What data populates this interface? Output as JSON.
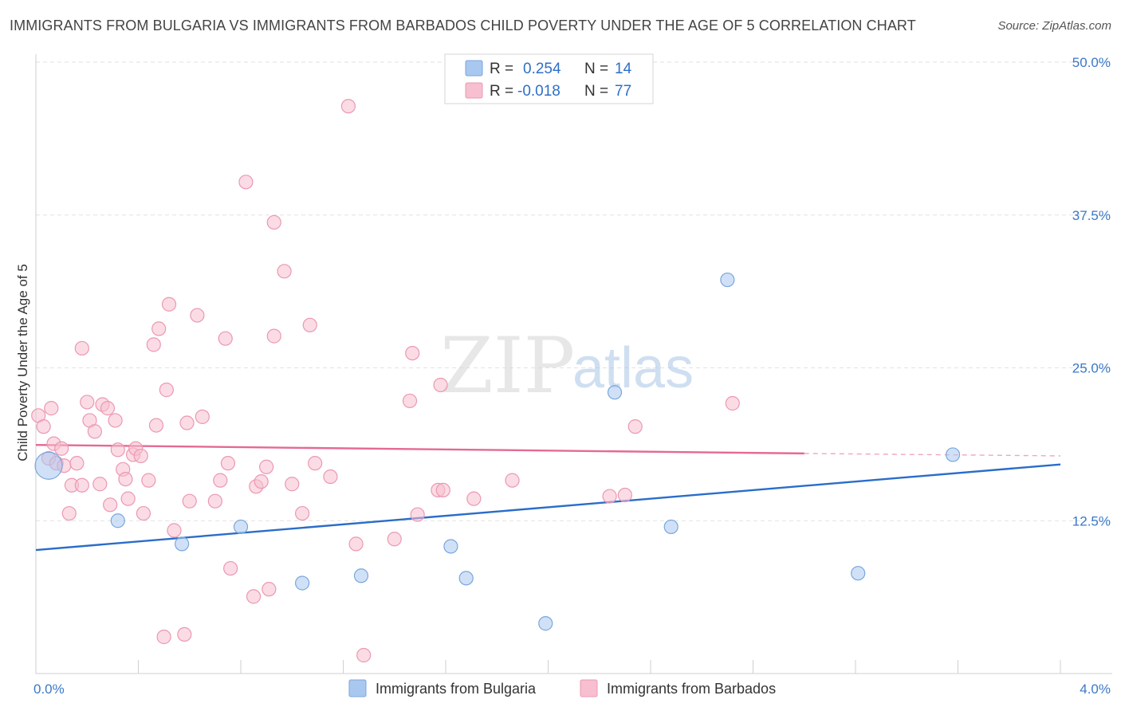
{
  "header": {
    "title": "IMMIGRANTS FROM BULGARIA VS IMMIGRANTS FROM BARBADOS CHILD POVERTY UNDER THE AGE OF 5 CORRELATION CHART",
    "source": "Source: ZipAtlas.com"
  },
  "watermark": {
    "zip": "ZIP",
    "atlas": "atlas"
  },
  "legend": {
    "rows": [
      {
        "r_label": "R =",
        "r_value": "0.254",
        "n_label": "N =",
        "n_value": "14"
      },
      {
        "r_label": "R =",
        "r_value": "-0.018",
        "n_label": "N =",
        "n_value": "77"
      }
    ]
  },
  "chart_data": {
    "type": "scatter",
    "title": "IMMIGRANTS FROM BULGARIA VS IMMIGRANTS FROM BARBADOS CHILD POVERTY UNDER THE AGE OF 5 CORRELATION CHART",
    "xlabel": "",
    "ylabel": "Child Poverty Under the Age of 5",
    "xlim": [
      0,
      4.0
    ],
    "ylim": [
      0,
      50
    ],
    "x_tick_labels": [
      "0.0%",
      "4.0%"
    ],
    "y_ticks": [
      12.5,
      25.0,
      37.5,
      50.0
    ],
    "y_tick_labels": [
      "12.5%",
      "25.0%",
      "37.5%",
      "50.0%"
    ],
    "grid": true,
    "legend_position": "top-center",
    "series": [
      {
        "name": "Immigrants from Bulgaria",
        "color": "#a9c8f0",
        "stroke": "#7aa6dc",
        "line_color": "#2a6dc9",
        "r": 0.254,
        "n": 14,
        "trend": {
          "x": [
            0,
            4.0
          ],
          "y": [
            10.1,
            17.1
          ]
        },
        "points": [
          {
            "x": 0.05,
            "y": 17.0,
            "big": true
          },
          {
            "x": 0.32,
            "y": 12.5
          },
          {
            "x": 0.57,
            "y": 10.6
          },
          {
            "x": 0.8,
            "y": 12.0
          },
          {
            "x": 1.04,
            "y": 7.4
          },
          {
            "x": 1.27,
            "y": 8.0
          },
          {
            "x": 1.62,
            "y": 10.4
          },
          {
            "x": 1.68,
            "y": 7.8
          },
          {
            "x": 1.99,
            "y": 4.1
          },
          {
            "x": 2.26,
            "y": 23.0
          },
          {
            "x": 2.48,
            "y": 12.0
          },
          {
            "x": 2.7,
            "y": 32.2
          },
          {
            "x": 3.21,
            "y": 8.2
          },
          {
            "x": 3.58,
            "y": 17.9
          }
        ]
      },
      {
        "name": "Immigrants from Barbados",
        "color": "#f7bfd0",
        "stroke": "#eb98b2",
        "line_color": "#e46a92",
        "r": -0.018,
        "n": 77,
        "trend": {
          "x": [
            0,
            3.0
          ],
          "y": [
            18.7,
            18.0
          ]
        },
        "trend_dashed": {
          "x": [
            3.0,
            4.0
          ],
          "y": [
            18.0,
            17.8
          ]
        },
        "points": [
          {
            "x": 0.01,
            "y": 21.1
          },
          {
            "x": 0.03,
            "y": 20.2
          },
          {
            "x": 0.05,
            "y": 17.6
          },
          {
            "x": 0.06,
            "y": 21.7
          },
          {
            "x": 0.07,
            "y": 18.8
          },
          {
            "x": 0.08,
            "y": 17.2
          },
          {
            "x": 0.1,
            "y": 18.4
          },
          {
            "x": 0.11,
            "y": 17.0
          },
          {
            "x": 0.13,
            "y": 13.1
          },
          {
            "x": 0.14,
            "y": 15.4
          },
          {
            "x": 0.16,
            "y": 17.2
          },
          {
            "x": 0.18,
            "y": 26.6
          },
          {
            "x": 0.18,
            "y": 15.4
          },
          {
            "x": 0.2,
            "y": 22.2
          },
          {
            "x": 0.21,
            "y": 20.7
          },
          {
            "x": 0.23,
            "y": 19.8
          },
          {
            "x": 0.25,
            "y": 15.5
          },
          {
            "x": 0.26,
            "y": 22.0
          },
          {
            "x": 0.28,
            "y": 21.7
          },
          {
            "x": 0.29,
            "y": 13.8
          },
          {
            "x": 0.31,
            "y": 20.7
          },
          {
            "x": 0.32,
            "y": 18.3
          },
          {
            "x": 0.34,
            "y": 16.7
          },
          {
            "x": 0.35,
            "y": 15.9
          },
          {
            "x": 0.36,
            "y": 14.3
          },
          {
            "x": 0.38,
            "y": 17.9
          },
          {
            "x": 0.39,
            "y": 18.4
          },
          {
            "x": 0.41,
            "y": 17.8
          },
          {
            "x": 0.42,
            "y": 13.1
          },
          {
            "x": 0.44,
            "y": 15.8
          },
          {
            "x": 0.46,
            "y": 26.9
          },
          {
            "x": 0.47,
            "y": 20.3
          },
          {
            "x": 0.48,
            "y": 28.2
          },
          {
            "x": 0.5,
            "y": 3.0
          },
          {
            "x": 0.51,
            "y": 23.2
          },
          {
            "x": 0.52,
            "y": 30.2
          },
          {
            "x": 0.54,
            "y": 11.7
          },
          {
            "x": 0.58,
            "y": 3.2
          },
          {
            "x": 0.59,
            "y": 20.5
          },
          {
            "x": 0.6,
            "y": 14.1
          },
          {
            "x": 0.63,
            "y": 29.3
          },
          {
            "x": 0.65,
            "y": 21.0
          },
          {
            "x": 0.7,
            "y": 14.1
          },
          {
            "x": 0.72,
            "y": 15.8
          },
          {
            "x": 0.74,
            "y": 27.4
          },
          {
            "x": 0.75,
            "y": 17.2
          },
          {
            "x": 0.76,
            "y": 8.6
          },
          {
            "x": 0.82,
            "y": 40.2
          },
          {
            "x": 0.85,
            "y": 6.3
          },
          {
            "x": 0.86,
            "y": 15.3
          },
          {
            "x": 0.88,
            "y": 15.7
          },
          {
            "x": 0.9,
            "y": 16.9
          },
          {
            "x": 0.91,
            "y": 6.9
          },
          {
            "x": 0.93,
            "y": 27.6
          },
          {
            "x": 0.93,
            "y": 36.9
          },
          {
            "x": 0.97,
            "y": 32.9
          },
          {
            "x": 1.0,
            "y": 15.5
          },
          {
            "x": 1.04,
            "y": 13.1
          },
          {
            "x": 1.07,
            "y": 28.5
          },
          {
            "x": 1.09,
            "y": 17.2
          },
          {
            "x": 1.15,
            "y": 16.1
          },
          {
            "x": 1.25,
            "y": 10.6
          },
          {
            "x": 1.22,
            "y": 46.4
          },
          {
            "x": 1.28,
            "y": 1.5
          },
          {
            "x": 1.4,
            "y": 11.0
          },
          {
            "x": 1.46,
            "y": 22.3
          },
          {
            "x": 1.47,
            "y": 26.2
          },
          {
            "x": 1.49,
            "y": 13.0
          },
          {
            "x": 1.57,
            "y": 15.0
          },
          {
            "x": 1.59,
            "y": 15.0
          },
          {
            "x": 1.58,
            "y": 23.6
          },
          {
            "x": 1.71,
            "y": 14.3
          },
          {
            "x": 1.86,
            "y": 15.8
          },
          {
            "x": 2.24,
            "y": 14.5
          },
          {
            "x": 2.34,
            "y": 20.2
          },
          {
            "x": 2.3,
            "y": 14.6
          },
          {
            "x": 2.72,
            "y": 22.1
          }
        ]
      }
    ]
  }
}
